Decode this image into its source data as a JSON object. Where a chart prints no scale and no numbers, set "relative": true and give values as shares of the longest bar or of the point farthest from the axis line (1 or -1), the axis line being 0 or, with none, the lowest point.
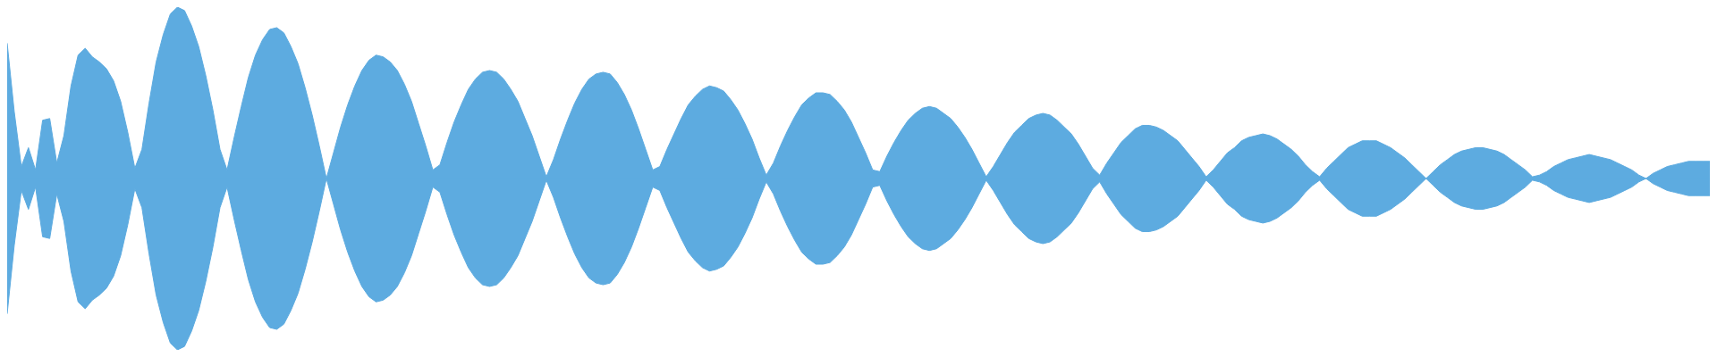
{
  "chart_data": {
    "type": "area",
    "relative": true,
    "ref_lines": [
      {
        "axis": "y",
        "value": 0,
        "color": "#5dabe0"
      }
    ],
    "categories": [
      null,
      null,
      null,
      null,
      null,
      null,
      null,
      null,
      null,
      null,
      null,
      null,
      null,
      null,
      null,
      null,
      null,
      null,
      null,
      null,
      null,
      null,
      null,
      null,
      null,
      null,
      null,
      null,
      null,
      null,
      null,
      null,
      null,
      null,
      null,
      null,
      null,
      null,
      null,
      null,
      null,
      null,
      null,
      null,
      null,
      null,
      null,
      null,
      null,
      null,
      null,
      null,
      null,
      null,
      null,
      null,
      null,
      null,
      null,
      null,
      null,
      null,
      null,
      null,
      null,
      null,
      null,
      null,
      null,
      null,
      null,
      null,
      null,
      null,
      null,
      null,
      null,
      null,
      null,
      null,
      null,
      null,
      null,
      null,
      null,
      null,
      null,
      null,
      null,
      null,
      null,
      null,
      null,
      null,
      null,
      null,
      null,
      null,
      null,
      null,
      null,
      null,
      null,
      null,
      null,
      null,
      null,
      null,
      null,
      null,
      null,
      null,
      null,
      null,
      null,
      null,
      null,
      null,
      null,
      null,
      null,
      null,
      null,
      null,
      null,
      null,
      null,
      null,
      null,
      null,
      null,
      null,
      null,
      null,
      null,
      null,
      null,
      null,
      null,
      null,
      null,
      null,
      null,
      null,
      null,
      null,
      null,
      null,
      null,
      null,
      null,
      null,
      null,
      null,
      null,
      null,
      null,
      null,
      null,
      null,
      null,
      null,
      null,
      null,
      null,
      null,
      null,
      null,
      null,
      null,
      null,
      null,
      null,
      null,
      null,
      null,
      null,
      null,
      null,
      null,
      null,
      null,
      null,
      null,
      null,
      null,
      null,
      null,
      null,
      null,
      null,
      null,
      null,
      null,
      null,
      null,
      null,
      null,
      null,
      null,
      null,
      null,
      null,
      null,
      null,
      null,
      null,
      null,
      null,
      null,
      null,
      null,
      null,
      null,
      null,
      null,
      null,
      null,
      null,
      null,
      null,
      null,
      null,
      null,
      null,
      null,
      null,
      null,
      null,
      null,
      null,
      null,
      null,
      null,
      null,
      null,
      null,
      null,
      null,
      null,
      null
    ],
    "series": [
      {
        "color": "#5dabe0",
        "values": [
          0.79,
          0.39,
          0.07,
          0.18,
          0.05,
          0.34,
          0.35,
          0.09,
          0.25,
          0.54,
          0.72,
          0.76,
          0.71,
          0.68,
          0.64,
          0.57,
          0.45,
          0.27,
          0.06,
          0.17,
          0.44,
          0.68,
          0.84,
          0.96,
          1,
          0.98,
          0.89,
          0.77,
          0.6,
          0.4,
          0.17,
          0.05,
          0.24,
          0.42,
          0.59,
          0.72,
          0.81,
          0.87,
          0.88,
          0.85,
          0.77,
          0.67,
          0.53,
          0.37,
          0.19,
          0,
          0.15,
          0.3,
          0.43,
          0.54,
          0.63,
          0.69,
          0.72,
          0.71,
          0.68,
          0.63,
          0.55,
          0.45,
          0.32,
          0.19,
          0.05,
          0.08,
          0.21,
          0.33,
          0.43,
          0.52,
          0.58,
          0.62,
          0.63,
          0.62,
          0.58,
          0.52,
          0.45,
          0.35,
          0.25,
          0.13,
          0.01,
          0.11,
          0.23,
          0.34,
          0.44,
          0.52,
          0.58,
          0.61,
          0.62,
          0.61,
          0.56,
          0.49,
          0.4,
          0.29,
          0.17,
          0.05,
          0.07,
          0.17,
          0.26,
          0.35,
          0.43,
          0.48,
          0.52,
          0.54,
          0.53,
          0.51,
          0.46,
          0.4,
          0.32,
          0.23,
          0.12,
          0.02,
          0.09,
          0.19,
          0.28,
          0.36,
          0.43,
          0.47,
          0.5,
          0.5,
          0.49,
          0.45,
          0.4,
          0.33,
          0.24,
          0.15,
          0.05,
          0.04,
          0.13,
          0.21,
          0.28,
          0.34,
          0.38,
          0.41,
          0.42,
          0.41,
          0.38,
          0.35,
          0.3,
          0.24,
          0.17,
          0.09,
          0.01,
          0.07,
          0.14,
          0.21,
          0.27,
          0.31,
          0.35,
          0.37,
          0.38,
          0.37,
          0.34,
          0.3,
          0.26,
          0.2,
          0.13,
          0.06,
          0.02,
          0.09,
          0.15,
          0.21,
          0.25,
          0.29,
          0.31,
          0.31,
          0.3,
          0.28,
          0.25,
          0.22,
          0.17,
          0.12,
          0.07,
          0.01,
          0.05,
          0.1,
          0.15,
          0.18,
          0.22,
          0.24,
          0.25,
          0.26,
          0.25,
          0.23,
          0.2,
          0.17,
          0.13,
          0.08,
          0.04,
          0.01,
          0.06,
          0.1,
          0.14,
          0.18,
          0.2,
          0.22,
          0.22,
          0.22,
          0.2,
          0.18,
          0.15,
          0.12,
          0.08,
          0.04,
          0,
          0.04,
          0.08,
          0.11,
          0.14,
          0.16,
          0.17,
          0.18,
          0.18,
          0.17,
          0.16,
          0.14,
          0.11,
          0.08,
          0.05,
          0.01,
          0.02,
          0.04,
          0.07,
          0.09,
          0.11,
          0.12,
          0.13,
          0.14,
          0.13,
          0.12,
          0.11,
          0.09,
          0.07,
          0.05,
          0.02,
          0,
          0.03,
          0.05,
          0.07,
          0.08,
          0.09,
          0.1,
          0.1,
          0.1,
          0.1
        ]
      },
      {
        "color": "#5dabe0",
        "values": [
          -0.79,
          -0.39,
          -0.07,
          -0.18,
          -0.05,
          -0.34,
          -0.35,
          -0.09,
          -0.25,
          -0.54,
          -0.72,
          -0.76,
          -0.71,
          -0.68,
          -0.64,
          -0.57,
          -0.45,
          -0.27,
          -0.06,
          -0.17,
          -0.44,
          -0.68,
          -0.84,
          -0.96,
          -1,
          -0.98,
          -0.89,
          -0.77,
          -0.6,
          -0.4,
          -0.17,
          -0.05,
          -0.24,
          -0.42,
          -0.59,
          -0.72,
          -0.81,
          -0.87,
          -0.88,
          -0.85,
          -0.77,
          -0.67,
          -0.53,
          -0.37,
          -0.19,
          0,
          -0.15,
          -0.3,
          -0.43,
          -0.54,
          -0.63,
          -0.69,
          -0.72,
          -0.71,
          -0.68,
          -0.63,
          -0.55,
          -0.45,
          -0.32,
          -0.19,
          -0.05,
          -0.08,
          -0.21,
          -0.33,
          -0.43,
          -0.52,
          -0.58,
          -0.62,
          -0.63,
          -0.62,
          -0.58,
          -0.52,
          -0.45,
          -0.35,
          -0.25,
          -0.13,
          -0.01,
          -0.11,
          -0.23,
          -0.34,
          -0.44,
          -0.52,
          -0.58,
          -0.61,
          -0.62,
          -0.61,
          -0.56,
          -0.49,
          -0.4,
          -0.29,
          -0.17,
          -0.05,
          -0.07,
          -0.17,
          -0.26,
          -0.35,
          -0.43,
          -0.48,
          -0.52,
          -0.54,
          -0.53,
          -0.51,
          -0.46,
          -0.4,
          -0.32,
          -0.23,
          -0.12,
          -0.02,
          -0.09,
          -0.19,
          -0.28,
          -0.36,
          -0.43,
          -0.47,
          -0.5,
          -0.5,
          -0.49,
          -0.45,
          -0.4,
          -0.33,
          -0.24,
          -0.15,
          -0.05,
          -0.04,
          -0.13,
          -0.21,
          -0.28,
          -0.34,
          -0.38,
          -0.41,
          -0.42,
          -0.41,
          -0.38,
          -0.35,
          -0.3,
          -0.24,
          -0.17,
          -0.09,
          -0.01,
          -0.07,
          -0.14,
          -0.21,
          -0.27,
          -0.31,
          -0.35,
          -0.37,
          -0.38,
          -0.37,
          -0.34,
          -0.3,
          -0.26,
          -0.2,
          -0.13,
          -0.06,
          -0.02,
          -0.09,
          -0.15,
          -0.21,
          -0.25,
          -0.29,
          -0.31,
          -0.31,
          -0.3,
          -0.28,
          -0.25,
          -0.22,
          -0.17,
          -0.12,
          -0.07,
          -0.01,
          -0.05,
          -0.1,
          -0.15,
          -0.18,
          -0.22,
          -0.24,
          -0.25,
          -0.26,
          -0.25,
          -0.23,
          -0.2,
          -0.17,
          -0.13,
          -0.08,
          -0.04,
          -0.01,
          -0.06,
          -0.1,
          -0.14,
          -0.18,
          -0.2,
          -0.22,
          -0.22,
          -0.22,
          -0.2,
          -0.18,
          -0.15,
          -0.12,
          -0.08,
          -0.04,
          0,
          -0.04,
          -0.08,
          -0.11,
          -0.14,
          -0.16,
          -0.17,
          -0.18,
          -0.18,
          -0.17,
          -0.16,
          -0.14,
          -0.11,
          -0.08,
          -0.05,
          -0.01,
          -0.02,
          -0.04,
          -0.07,
          -0.09,
          -0.11,
          -0.12,
          -0.13,
          -0.14,
          -0.13,
          -0.12,
          -0.11,
          -0.09,
          -0.07,
          -0.05,
          -0.02,
          0,
          -0.03,
          -0.05,
          -0.07,
          -0.08,
          -0.09,
          -0.1,
          -0.1,
          -0.1,
          -0.1
        ]
      }
    ]
  }
}
